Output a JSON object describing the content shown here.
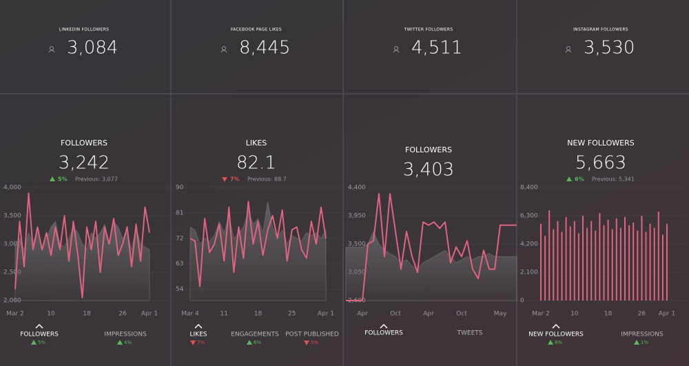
{
  "panels": [
    {
      "header": {
        "label": "LINKEDIN FOLLOWERS",
        "value": "3,084"
      },
      "metric": {
        "title": "FOLLOWERS",
        "value": "3,242",
        "change": "5%",
        "trend": "up",
        "previous": "Previous: 3,077"
      },
      "chart": {
        "type": "line",
        "ylim": [
          2000,
          4000
        ],
        "yticks": [
          {
            "value": 2000,
            "label": "2,000"
          },
          {
            "value": 2500,
            "label": "2,500"
          },
          {
            "value": 3000,
            "label": "3,000"
          },
          {
            "value": 3500,
            "label": "3,500"
          },
          {
            "value": 4000,
            "label": "4,000"
          }
        ],
        "categories": [
          "Mar 2",
          null,
          null,
          null,
          null,
          null,
          null,
          null,
          "10",
          null,
          null,
          null,
          null,
          null,
          null,
          null,
          "18",
          null,
          null,
          null,
          null,
          null,
          null,
          null,
          "26",
          null,
          null,
          null,
          null,
          null,
          "Apr 1"
        ],
        "series": [
          {
            "color": "#e0637f",
            "values": [
              2200,
              3400,
              2600,
              3900,
              2900,
              3300,
              2900,
              3200,
              2800,
              3300,
              2900,
              3500,
              2700,
              3400,
              2800,
              2050,
              3300,
              2900,
              3400,
              2500,
              3300,
              3000,
              3450,
              2800,
              3000,
              3300,
              2600,
              3350,
              2700,
              3650,
              3200
            ]
          },
          {
            "color": "#8a8a8c",
            "values": [
              3000,
              3100,
              2900,
              3200,
              3000,
              3300,
              2900,
              3100,
              3300,
              3400,
              3000,
              2950,
              3100,
              3300,
              3200,
              3000,
              2900,
              3200,
              3100,
              3200,
              3350,
              3000,
              3400,
              3300,
              3100,
              3200,
              2900,
              3300,
              3000,
              2950,
              2900
            ]
          }
        ]
      },
      "tabs": [
        {
          "label": "FOLLOWERS",
          "change": "5%",
          "trend": "up"
        },
        {
          "label": "IMPRESSIONS",
          "change": "4%",
          "trend": "up"
        }
      ]
    },
    {
      "header": {
        "label": "FACEBOOK PAGE LIKES",
        "value": "8,445"
      },
      "metric": {
        "title": "LIKES",
        "value": "82.1",
        "change": "7%",
        "trend": "down",
        "previous": "Previous: 88.7"
      },
      "chart": {
        "type": "line",
        "ylim": [
          50,
          90
        ],
        "yticks": [
          54,
          63,
          72,
          81,
          90
        ],
        "categories": [
          "Mar 4",
          null,
          null,
          null,
          null,
          null,
          null,
          "11",
          null,
          null,
          null,
          null,
          null,
          null,
          "18",
          null,
          null,
          null,
          null,
          null,
          null,
          "25",
          null,
          null,
          null,
          null,
          null,
          null,
          "Apr 1"
        ],
        "series": [
          {
            "color": "#e0637f",
            "values": [
              72,
              71,
              55,
              79,
              67,
              70,
              77,
              64,
              83,
              60,
              76,
              65,
              85,
              70,
              78,
              66,
              75,
              80,
              72,
              82,
              64,
              75,
              76,
              68,
              65,
              78,
              70,
              83,
              72
            ]
          },
          {
            "color": "#8a8a8c",
            "values": [
              76,
              75,
              70,
              72,
              71,
              73,
              78,
              74,
              80,
              72,
              74,
              76,
              82,
              77,
              79,
              74,
              85,
              76,
              72,
              75,
              70,
              73,
              72,
              71,
              74,
              73,
              74,
              72,
              75
            ]
          }
        ]
      },
      "tabs": [
        {
          "label": "LIKES",
          "change": "7%",
          "trend": "down"
        },
        {
          "label": "ENGAGEMENTS",
          "change": "6%",
          "trend": "up"
        },
        {
          "label": "POST PUBLISHED",
          "change": "5%",
          "trend": "down"
        }
      ]
    },
    {
      "header": {
        "label": "TWITTER FOLLOWERS",
        "value": "4,511"
      },
      "metric": {
        "title": "FOLLOWERS",
        "value": "3,403"
      },
      "chart": {
        "type": "line",
        "ylim": [
          2600,
          4400
        ],
        "yticks": [
          {
            "value": 2600,
            "label": "2,600"
          },
          {
            "value": 3050,
            "label": "3,050"
          },
          {
            "value": 3500,
            "label": "3,500"
          },
          {
            "value": 3950,
            "label": "3,950"
          },
          {
            "value": 4400,
            "label": "4,400"
          }
        ],
        "categories": [
          null,
          null,
          null,
          "Apr",
          null,
          null,
          null,
          null,
          null,
          "Oct",
          null,
          null,
          null,
          null,
          null,
          "Apr",
          null,
          null,
          null,
          null,
          null,
          "Oct",
          null,
          null,
          null,
          null,
          null,
          null,
          "May",
          null,
          null,
          null
        ],
        "series": [
          {
            "color": "#e0637f",
            "values": [
              2600,
              2600,
              2600,
              2600,
              3500,
              3550,
              4300,
              3300,
              4300,
              3700,
              3100,
              3700,
              3300,
              3050,
              3850,
              3800,
              3850,
              3750,
              3850,
              3200,
              3450,
              3300,
              3550,
              3100,
              2950,
              3400,
              3100,
              3100,
              3800,
              3800,
              3800,
              3800
            ]
          },
          {
            "color": "#8a8a8c",
            "values": [
              3450,
              3450,
              3450,
              3450,
              3500,
              3700,
              3500,
              3400,
              3350,
              3300,
              3200,
              3250,
              3150,
              3100,
              3200,
              3250,
              3300,
              3350,
              3400,
              3300,
              3200,
              3250,
              3300,
              3250,
              3300,
              3300,
              3350,
              3300,
              3300,
              3300,
              3300,
              3300
            ]
          }
        ]
      },
      "tabs": [
        {
          "label": "FOLLOWERS"
        },
        {
          "label": "TWEETS"
        }
      ]
    },
    {
      "header": {
        "label": "INSTAGRAM FOLLOWERS",
        "value": "3,530"
      },
      "metric": {
        "title": "NEW FOLLOWERS",
        "value": "5,663",
        "change": "6%",
        "trend": "up",
        "previous": "Previous: 5,341"
      },
      "chart": {
        "type": "bar",
        "ylim": [
          0,
          8400
        ],
        "yticks": [
          0,
          {
            "value": 2100,
            "label": "2,100"
          },
          {
            "value": 4200,
            "label": "4,200"
          },
          {
            "value": 6300,
            "label": "6,300"
          },
          {
            "value": 8400,
            "label": "8,400"
          }
        ],
        "categories": [
          "Mar 2",
          null,
          null,
          null,
          null,
          null,
          null,
          null,
          "10",
          null,
          null,
          null,
          null,
          null,
          null,
          null,
          "18",
          null,
          null,
          null,
          null,
          null,
          null,
          null,
          "26",
          null,
          null,
          null,
          null,
          null,
          "Apr 1"
        ],
        "series": [
          {
            "color": "#e0637f",
            "values": [
              5700,
              4800,
              6700,
              5300,
              5900,
              5100,
              6200,
              5500,
              5900,
              5000,
              6300,
              5400,
              5900,
              5200,
              6500,
              5600,
              6000,
              5300,
              6100,
              5400,
              6200,
              5600,
              5800,
              5200,
              6300,
              5100,
              5700,
              5400,
              6600,
              4900,
              5700
            ]
          }
        ]
      },
      "tabs": [
        {
          "label": "NEW FOLLOWERS",
          "change": "6%",
          "trend": "up"
        },
        {
          "label": "IMPRESSIONS",
          "change": "1%",
          "trend": "up"
        }
      ]
    }
  ]
}
